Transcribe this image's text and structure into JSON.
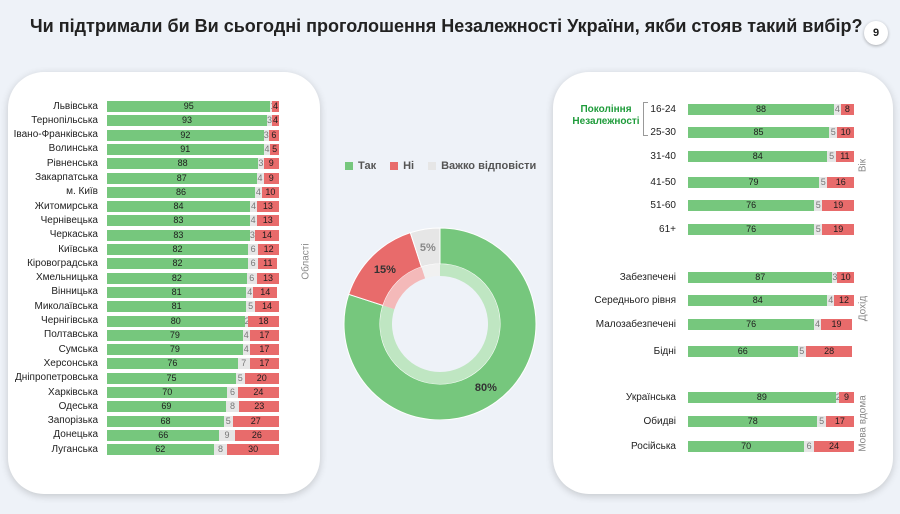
{
  "title": "Чи підтримали би Ви сьогодні проголошення Незалежності України, якби стояв такий вибір?",
  "page_number": "9",
  "colors": {
    "yes": "#76c77d",
    "no": "#e86b6b",
    "dont_know": "#e6e6e6"
  },
  "legend": {
    "yes": "Так",
    "no": "Ні",
    "dont_know": "Важко відповісти"
  },
  "chart_data": [
    {
      "type": "bar",
      "subtype": "stacked-horizontal",
      "axis_label": "Області",
      "categories": [
        "Львівська",
        "Тернопільська",
        "Івано-Франківська",
        "Волинська",
        "Рівненська",
        "Закарпатська",
        "м. Київ",
        "Житомирська",
        "Чернівецька",
        "Черкаська",
        "Київська",
        "Кіровоградська",
        "Хмельницька",
        "Вінницька",
        "Миколаївська",
        "Чернігівська",
        "Полтавська",
        "Сумська",
        "Херсонська",
        "Дніпропетровська",
        "Харківська",
        "Одеська",
        "Запорізька",
        "Донецька",
        "Луганська"
      ],
      "series": [
        {
          "name": "Так",
          "values": [
            95,
            93,
            92,
            91,
            88,
            87,
            86,
            84,
            83,
            83,
            82,
            82,
            82,
            81,
            81,
            80,
            79,
            79,
            76,
            75,
            70,
            69,
            68,
            66,
            62
          ]
        },
        {
          "name": "Важко відповісти",
          "values": [
            1,
            3,
            3,
            4,
            3,
            4,
            4,
            4,
            4,
            3,
            6,
            6,
            6,
            4,
            5,
            2,
            4,
            4,
            7,
            5,
            6,
            8,
            5,
            9,
            8
          ]
        },
        {
          "name": "Ні",
          "values": [
            4,
            4,
            6,
            5,
            9,
            9,
            10,
            13,
            13,
            14,
            12,
            11,
            13,
            14,
            14,
            18,
            17,
            17,
            17,
            20,
            24,
            23,
            27,
            26,
            30
          ]
        }
      ],
      "xlim": [
        0,
        100
      ]
    },
    {
      "type": "pie",
      "subtype": "donut",
      "labels": [
        "Так",
        "Ні",
        "Важко відповісти"
      ],
      "values": [
        80,
        15,
        5
      ],
      "value_labels": [
        "80%",
        "15%",
        "5%"
      ]
    },
    {
      "type": "bar",
      "subtype": "stacked-horizontal",
      "groups": [
        {
          "axis_label": "Вік",
          "note": "Покоління Незалежності",
          "categories": [
            "16-24",
            "25-30",
            "31-40",
            "41-50",
            "51-60",
            "61+"
          ],
          "series": [
            {
              "name": "Так",
              "values": [
                88,
                85,
                84,
                79,
                76,
                76
              ]
            },
            {
              "name": "Важко відповісти",
              "values": [
                4,
                5,
                5,
                5,
                5,
                5
              ]
            },
            {
              "name": "Ні",
              "values": [
                8,
                10,
                11,
                16,
                19,
                19
              ]
            }
          ]
        },
        {
          "axis_label": "Дохід",
          "categories": [
            "Забезпечені",
            "Середнього рівня",
            "Малозабезпечені",
            "Бідні"
          ],
          "series": [
            {
              "name": "Так",
              "values": [
                87,
                84,
                76,
                66
              ]
            },
            {
              "name": "Важко відповісти",
              "values": [
                3,
                4,
                4,
                5
              ]
            },
            {
              "name": "Ні",
              "values": [
                10,
                12,
                19,
                28
              ]
            }
          ]
        },
        {
          "axis_label": "Мова вдома",
          "categories": [
            "Українська",
            "Обидві",
            "Російська"
          ],
          "series": [
            {
              "name": "Так",
              "values": [
                89,
                78,
                70
              ]
            },
            {
              "name": "Важко відповісти",
              "values": [
                2,
                5,
                6
              ]
            },
            {
              "name": "Ні",
              "values": [
                9,
                17,
                24
              ]
            }
          ]
        }
      ],
      "xlim": [
        0,
        100
      ]
    }
  ]
}
